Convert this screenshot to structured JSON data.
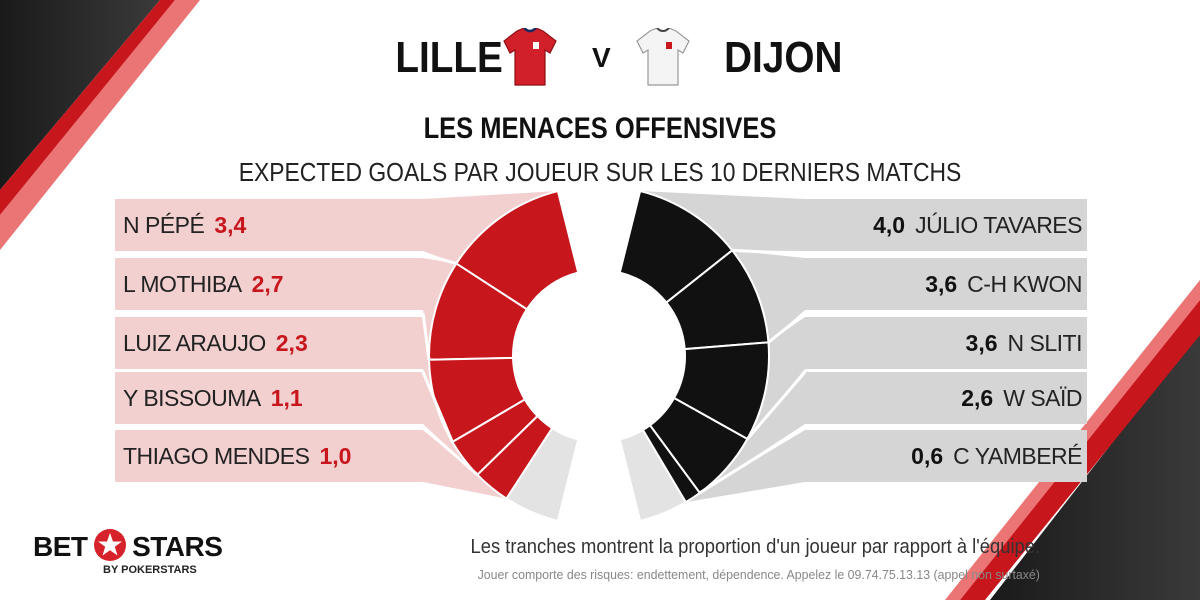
{
  "header": {
    "home_team": "LILLE",
    "vs": "V",
    "away_team": "DIJON"
  },
  "title": "LES MENACES OFFENSIVES",
  "subtitle": "EXPECTED GOALS PAR JOUEUR SUR LES 10 DERNIERS MATCHS",
  "colors": {
    "lille": "#c8161d",
    "dijon": "#111111",
    "lille_band": "#f3d0d0",
    "dijon_band": "#d5d5d5",
    "remainder": "#e3e3e3"
  },
  "chart_data": [
    {
      "type": "pie",
      "team": "LILLE",
      "categories": [
        "N PÉPÉ",
        "L MOTHIBA",
        "LUIZ ARAUJO",
        "Y BISSOUMA",
        "THIAGO MENDES"
      ],
      "values": [
        "3,4",
        "2,7",
        "2,3",
        "1,1",
        "1,0"
      ],
      "numeric_values": [
        3.4,
        2.7,
        2.3,
        1.1,
        1.0
      ],
      "team_share_shown": 0.875
    },
    {
      "type": "pie",
      "team": "DIJON",
      "categories": [
        "JÚLIO TAVARES",
        "C-H KWON",
        "N SLITI",
        "W SAÏD",
        "C YAMBERÉ"
      ],
      "values": [
        "4,0",
        "3,6",
        "3,6",
        "2,6",
        "0,6"
      ],
      "numeric_values": [
        4.0,
        3.6,
        3.6,
        2.6,
        0.6
      ],
      "team_share_shown": 0.89
    }
  ],
  "footer": {
    "logo_bet": "BET",
    "logo_stars": "STARS",
    "logo_sub": "BY POKERSTARS",
    "note": "Les tranches montrent la proportion d'un joueur par rapport à l'équipe.",
    "disclaimer": "Jouer comporte des risques: endettement, dépendence. Appelez le 09.74.75.13.13 (appel non surtaxé)"
  }
}
